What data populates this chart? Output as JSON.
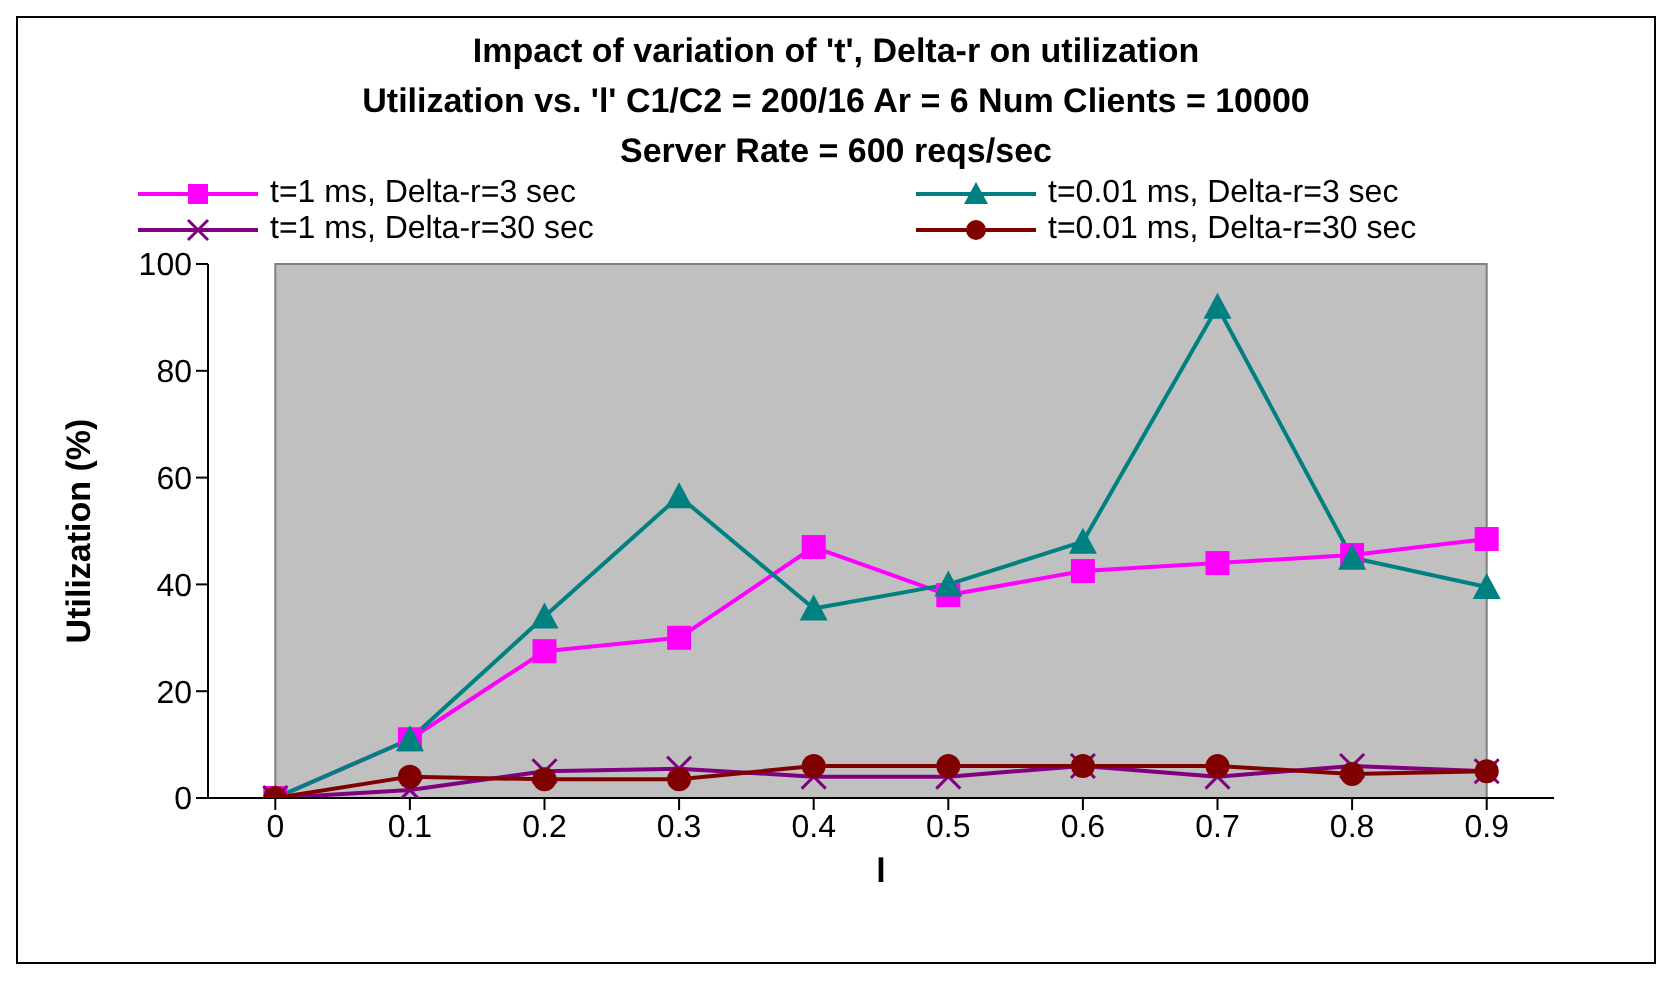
{
  "chart_data": {
    "type": "line",
    "title": "Impact of variation of 't', Delta-r on utilization",
    "subtitle": "Utilization vs. 'l'  C1/C2 = 200/16  Ar = 6  Num Clients = 10000\nServer Rate = 600 reqs/sec",
    "xlabel": "l",
    "ylabel": "Utilization (%)",
    "categories": [
      "0",
      "0.1",
      "0.2",
      "0.3",
      "0.4",
      "0.5",
      "0.6",
      "0.7",
      "0.8",
      "0.9"
    ],
    "ylim": [
      0,
      100
    ],
    "yticks": [
      0,
      20,
      40,
      60,
      80,
      100
    ],
    "grid": false,
    "legend": "top",
    "series": [
      {
        "name": "t=1 ms, Delta-r=3 sec",
        "color": "#ff00ff",
        "marker": "square",
        "values": [
          0,
          11,
          27.5,
          30,
          47,
          38,
          42.5,
          44,
          45.5,
          48.5
        ]
      },
      {
        "name": "t=0.01 ms, Delta-r=3 sec",
        "color": "#008080",
        "marker": "triangle",
        "values": [
          0,
          11,
          34,
          56.5,
          35.5,
          40,
          48,
          92,
          45,
          39.5
        ]
      },
      {
        "name": "t=1 ms, Delta-r=30 sec",
        "color": "#800080",
        "marker": "cross",
        "values": [
          0,
          1.5,
          5,
          5.5,
          4,
          4,
          6,
          4,
          6,
          5
        ]
      },
      {
        "name": "t=0.01 ms, Delta-r=30 sec",
        "color": "#800000",
        "marker": "circle",
        "values": [
          0,
          4,
          3.5,
          3.5,
          6,
          6,
          6,
          6,
          4.5,
          5
        ]
      }
    ]
  }
}
